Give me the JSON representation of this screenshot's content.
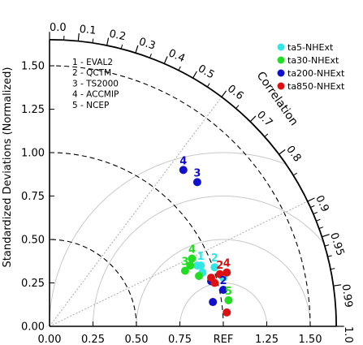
{
  "chart_data": {
    "type": "scatter",
    "subtype": "taylor-diagram",
    "ylabel": "Standardized Deviations (Normalized)",
    "xlabel": "",
    "arc_label": "Correlation",
    "ref_label": "REF",
    "std_max": 1.65,
    "x_ticks": [
      {
        "value": 0,
        "label": "0.00"
      },
      {
        "value": 0.25,
        "label": "0.25"
      },
      {
        "value": 0.5,
        "label": "0.50"
      },
      {
        "value": 0.75,
        "label": "0.75"
      },
      {
        "value": 1.25,
        "label": "1.25"
      },
      {
        "value": 1.5,
        "label": "1.50"
      }
    ],
    "y_ticks": [
      {
        "value": 0,
        "label": "0.00"
      },
      {
        "value": 0.25,
        "label": "0.25"
      },
      {
        "value": 0.5,
        "label": "0.50"
      },
      {
        "value": 0.75,
        "label": "0.75"
      },
      {
        "value": 1.0,
        "label": "1.00"
      },
      {
        "value": 1.25,
        "label": "1.25"
      },
      {
        "value": 1.5,
        "label": "1.50"
      }
    ],
    "corr_ticks_major": [
      {
        "value": 0,
        "label": "0.0"
      },
      {
        "value": 0.1,
        "label": "0.1"
      },
      {
        "value": 0.2,
        "label": "0.2"
      },
      {
        "value": 0.3,
        "label": "0.3"
      },
      {
        "value": 0.4,
        "label": "0.4"
      },
      {
        "value": 0.5,
        "label": "0.5"
      },
      {
        "value": 0.6,
        "label": "0.6"
      },
      {
        "value": 0.7,
        "label": "0.7"
      },
      {
        "value": 0.8,
        "label": "0.8"
      },
      {
        "value": 0.9,
        "label": "0.9"
      },
      {
        "value": 0.95,
        "label": "0.95"
      },
      {
        "value": 0.99,
        "label": "0.99"
      },
      {
        "value": 1.0,
        "label": "1.0"
      }
    ],
    "corr_ticks_minor": [
      0.05,
      0.15,
      0.25,
      0.35,
      0.45,
      0.55,
      0.65,
      0.75,
      0.85,
      0.91,
      0.92,
      0.93,
      0.94,
      0.96,
      0.97,
      0.98
    ],
    "corr_gridlines": [
      0.6,
      0.9
    ],
    "std_dashed_arcs": [
      0.5,
      1.0,
      1.5
    ],
    "rms_arcs": [
      0.25,
      0.5,
      0.75,
      1.0
    ],
    "model_list": [
      "1 - EVAL2",
      "2 - QCTM",
      "3 - TS2000",
      "4 - ACCMIP",
      "5 - NCEP"
    ],
    "legend_position": "top-right",
    "series": [
      {
        "name": "ta5-NHExt",
        "color": "#33e6e6",
        "points": [
          {
            "label": "1",
            "x": 0.87,
            "y": 0.35
          },
          {
            "label": "2",
            "x": 0.95,
            "y": 0.34
          },
          {
            "label": "3",
            "x": 0.88,
            "y": 0.31
          },
          {
            "label": "4",
            "x": 0.85,
            "y": 0.35
          },
          {
            "label": "5",
            "x": 1.0,
            "y": 0.28
          }
        ]
      },
      {
        "name": "ta30-NHExt",
        "color": "#22dd22",
        "points": [
          {
            "label": "1",
            "x": 0.81,
            "y": 0.35
          },
          {
            "label": "2",
            "x": 0.86,
            "y": 0.29
          },
          {
            "label": "3",
            "x": 0.78,
            "y": 0.32
          },
          {
            "label": "4",
            "x": 0.82,
            "y": 0.39
          },
          {
            "label": "5",
            "x": 1.03,
            "y": 0.15
          }
        ]
      },
      {
        "name": "ta200-NHExt",
        "color": "#1111cc",
        "points": [
          {
            "label": "1",
            "x": 0.93,
            "y": 0.26
          },
          {
            "label": "2",
            "x": 1.0,
            "y": 0.21
          },
          {
            "label": "3",
            "x": 0.85,
            "y": 0.83
          },
          {
            "label": "4",
            "x": 0.77,
            "y": 0.9
          },
          {
            "label": "5",
            "x": 0.94,
            "y": 0.14
          }
        ]
      },
      {
        "name": "ta850-NHExt",
        "color": "#dd1111",
        "points": [
          {
            "label": "1",
            "x": 0.95,
            "y": 0.25
          },
          {
            "label": "2",
            "x": 0.98,
            "y": 0.3
          },
          {
            "label": "3",
            "x": 0.93,
            "y": 0.28
          },
          {
            "label": "4",
            "x": 1.02,
            "y": 0.31
          },
          {
            "label": "5",
            "x": 1.02,
            "y": 0.08
          }
        ]
      }
    ],
    "visible_point_labels": [
      {
        "series": 2,
        "point": 3,
        "text": "4"
      },
      {
        "series": 2,
        "point": 2,
        "text": "3"
      },
      {
        "series": 1,
        "point": 3,
        "text": "4"
      },
      {
        "series": 1,
        "point": 2,
        "text": "3"
      },
      {
        "series": 0,
        "point": 0,
        "text": "1"
      },
      {
        "series": 0,
        "point": 1,
        "text": "2"
      },
      {
        "series": 3,
        "point": 3,
        "text": "4"
      },
      {
        "series": 3,
        "point": 1,
        "text": "2"
      },
      {
        "series": 2,
        "point": 1,
        "text": "2"
      },
      {
        "series": 1,
        "point": 4,
        "text": "5"
      }
    ]
  }
}
